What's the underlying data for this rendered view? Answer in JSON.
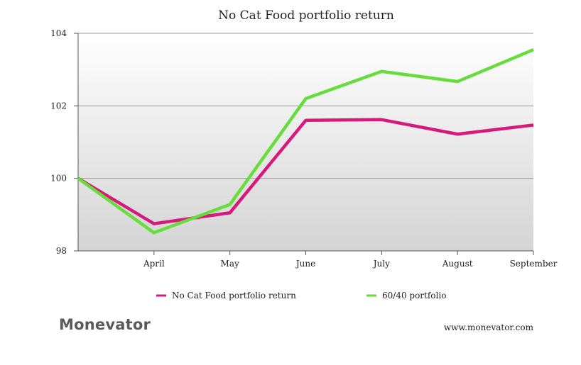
{
  "chart_data": {
    "type": "line",
    "title": "No Cat Food portfolio return",
    "categories": [
      "",
      "April",
      "May",
      "June",
      "July",
      "August",
      "September"
    ],
    "ylim": [
      98,
      104
    ],
    "yticks": [
      "98",
      "100",
      "102",
      "104"
    ],
    "grid": true,
    "legend_position": "bottom",
    "series": [
      {
        "name": "No Cat Food portfolio return",
        "color": "#d6197a",
        "values": [
          100,
          98.75,
          99.05,
          101.6,
          101.62,
          101.22,
          101.47
        ]
      },
      {
        "name": "60/40 portfolio",
        "color": "#66dd3a",
        "values": [
          100,
          98.5,
          99.28,
          102.2,
          102.95,
          102.67,
          103.55
        ]
      }
    ]
  },
  "footer": {
    "brand": "Monevator",
    "url": "www.monevator.com"
  }
}
